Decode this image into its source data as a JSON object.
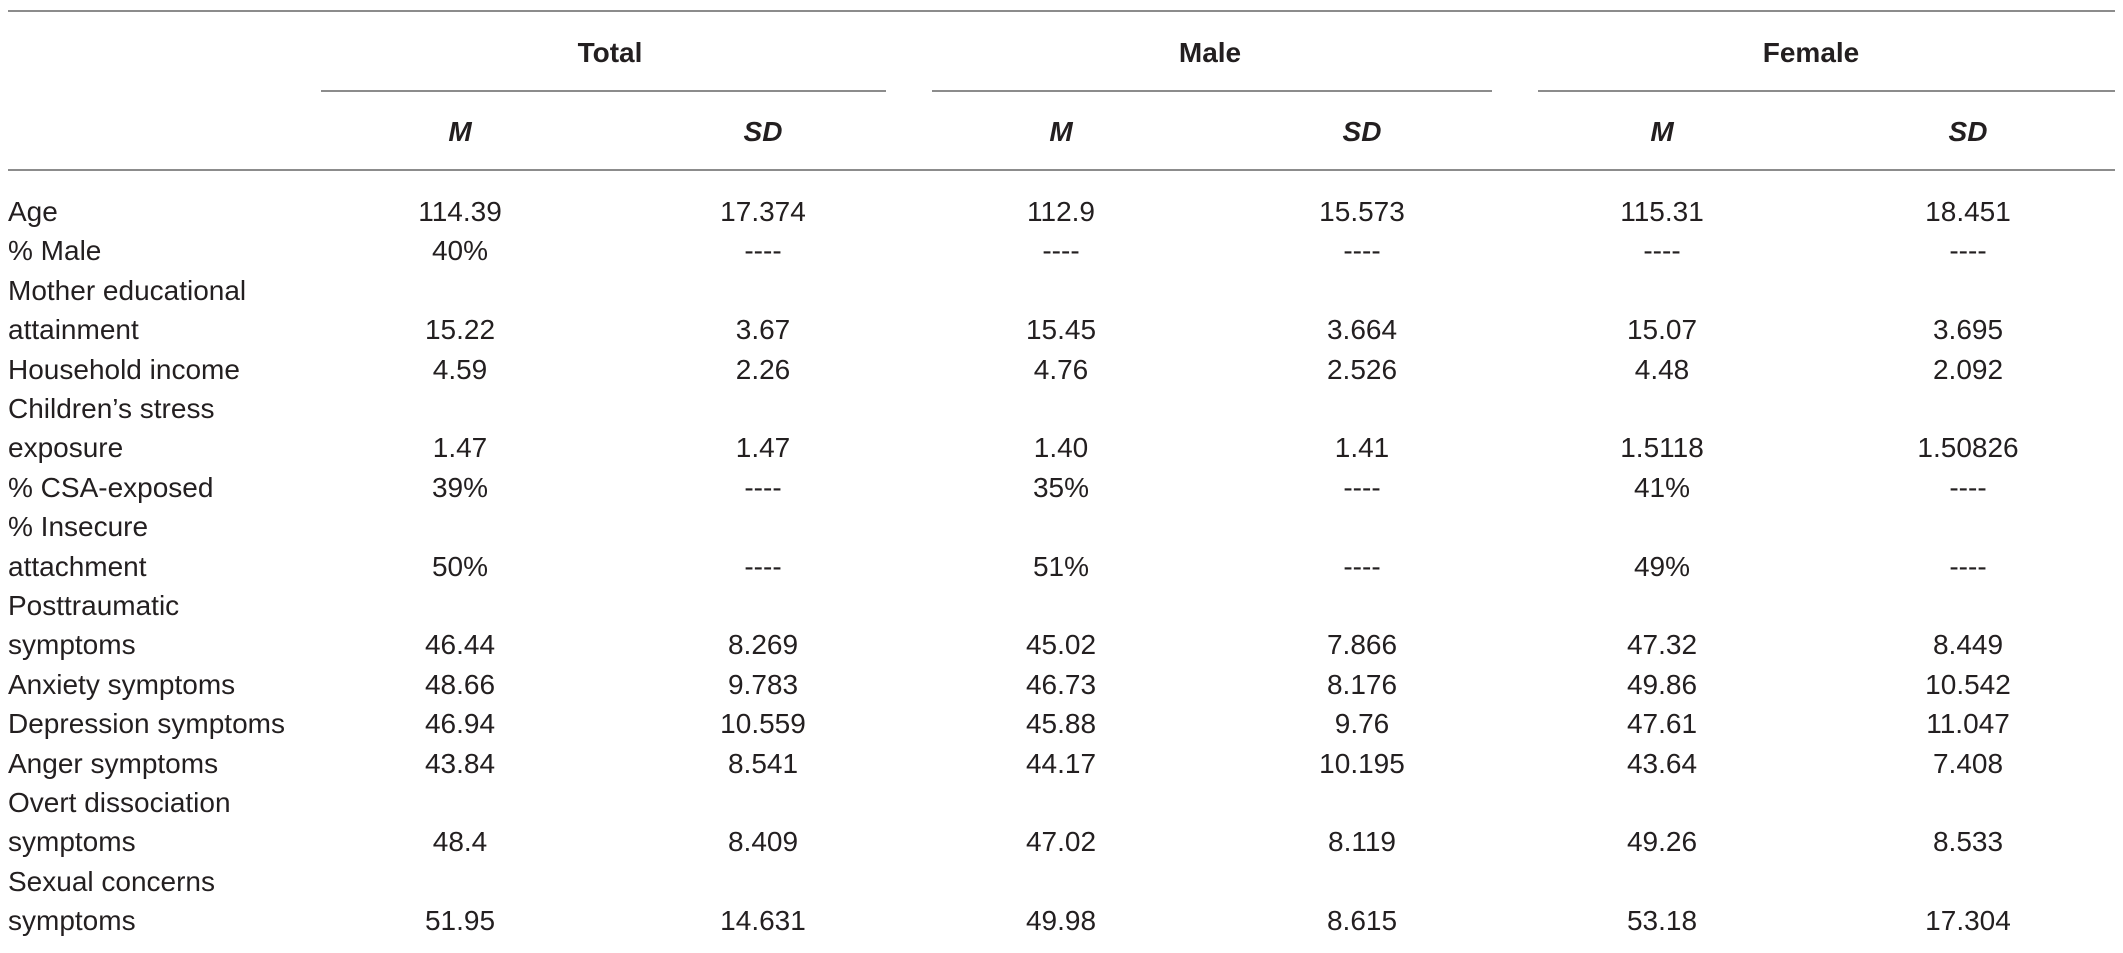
{
  "column_groups": [
    "Total",
    "Male",
    "Female"
  ],
  "sub_headers": [
    "M",
    "SD",
    "M",
    "SD",
    "M",
    "SD"
  ],
  "rows": [
    {
      "label": [
        "Age"
      ],
      "values": [
        "114.39",
        "17.374",
        "112.9",
        "15.573",
        "115.31",
        "18.451"
      ]
    },
    {
      "label": [
        "% Male"
      ],
      "values": [
        "40%",
        "----",
        "----",
        "----",
        "----",
        "----"
      ]
    },
    {
      "label": [
        "Mother educational",
        "attainment"
      ],
      "values": [
        "15.22",
        "3.67",
        "15.45",
        "3.664",
        "15.07",
        "3.695"
      ]
    },
    {
      "label": [
        "Household income"
      ],
      "values": [
        "4.59",
        "2.26",
        "4.76",
        "2.526",
        "4.48",
        "2.092"
      ]
    },
    {
      "label": [
        "Children’s stress",
        "exposure"
      ],
      "values": [
        "1.47",
        "1.47",
        "1.40",
        "1.41",
        "1.5118",
        "1.50826"
      ]
    },
    {
      "label": [
        "% CSA-exposed"
      ],
      "values": [
        "39%",
        "----",
        "35%",
        "----",
        "41%",
        "----"
      ]
    },
    {
      "label": [
        "% Insecure",
        "attachment"
      ],
      "values": [
        "50%",
        "----",
        "51%",
        "----",
        "49%",
        "----"
      ]
    },
    {
      "label": [
        "Posttraumatic",
        "symptoms"
      ],
      "values": [
        "46.44",
        "8.269",
        "45.02",
        "7.866",
        "47.32",
        "8.449"
      ]
    },
    {
      "label": [
        "Anxiety symptoms"
      ],
      "values": [
        "48.66",
        "9.783",
        "46.73",
        "8.176",
        "49.86",
        "10.542"
      ]
    },
    {
      "label": [
        "Depression symptoms"
      ],
      "values": [
        "46.94",
        "10.559",
        "45.88",
        "9.76",
        "47.61",
        "11.047"
      ]
    },
    {
      "label": [
        "Anger symptoms"
      ],
      "values": [
        "43.84",
        "8.541",
        "44.17",
        "10.195",
        "43.64",
        "7.408"
      ]
    },
    {
      "label": [
        "Overt dissociation",
        "symptoms"
      ],
      "values": [
        "48.4",
        "8.409",
        "47.02",
        "8.119",
        "49.26",
        "8.533"
      ]
    },
    {
      "label": [
        "Sexual concerns",
        "symptoms"
      ],
      "values": [
        "51.95",
        "14.631",
        "49.98",
        "8.615",
        "53.18",
        "17.304"
      ]
    }
  ]
}
